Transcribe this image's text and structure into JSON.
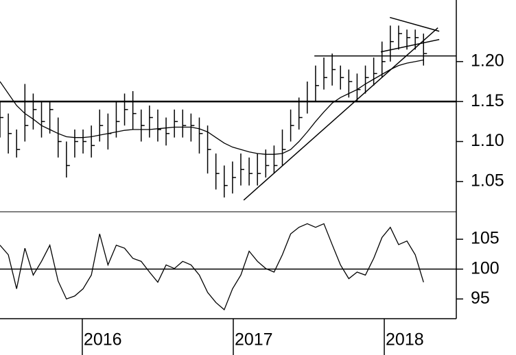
{
  "chart_data": [
    {
      "type": "ohlc",
      "xlim": [
        2015.455,
        2018.477
      ],
      "ylim": [
        1.013,
        1.277
      ],
      "yticks": [
        1.05,
        {
          "value": 1.1,
          "label": "1.10"
        },
        1.15,
        {
          "value": 1.2,
          "label": "1.20"
        }
      ],
      "x": [
        2015.455,
        2015.51,
        2015.565,
        2015.62,
        2015.675,
        2015.73,
        2015.785,
        2015.84,
        2015.895,
        2015.95,
        2016.005,
        2016.06,
        2016.115,
        2016.17,
        2016.225,
        2016.28,
        2016.335,
        2016.39,
        2016.445,
        2016.5,
        2016.555,
        2016.61,
        2016.665,
        2016.72,
        2016.775,
        2016.83,
        2016.885,
        2016.94,
        2016.995,
        2017.05,
        2017.105,
        2017.16,
        2017.215,
        2017.27,
        2017.325,
        2017.38,
        2017.435,
        2017.49,
        2017.545,
        2017.6,
        2017.655,
        2017.71,
        2017.765,
        2017.82,
        2017.875,
        2017.93,
        2017.985,
        2018.04,
        2018.095,
        2018.15,
        2018.205,
        2018.26
      ],
      "high": [
        1.15,
        1.135,
        1.115,
        1.172,
        1.16,
        1.15,
        1.15,
        1.13,
        1.1,
        1.115,
        1.115,
        1.12,
        1.14,
        1.135,
        1.15,
        1.16,
        1.163,
        1.14,
        1.145,
        1.14,
        1.13,
        1.14,
        1.14,
        1.135,
        1.13,
        1.12,
        1.085,
        1.07,
        1.075,
        1.085,
        1.08,
        1.085,
        1.09,
        1.095,
        1.115,
        1.14,
        1.155,
        1.175,
        1.195,
        1.205,
        1.21,
        1.195,
        1.19,
        1.185,
        1.195,
        1.205,
        1.225,
        1.245,
        1.245,
        1.24,
        1.24,
        1.235
      ],
      "low": [
        1.105,
        1.085,
        1.08,
        1.1,
        1.115,
        1.105,
        1.11,
        1.08,
        1.055,
        1.08,
        1.085,
        1.08,
        1.1,
        1.09,
        1.105,
        1.12,
        1.115,
        1.1,
        1.105,
        1.1,
        1.095,
        1.105,
        1.105,
        1.1,
        1.085,
        1.06,
        1.04,
        1.03,
        1.035,
        1.045,
        1.045,
        1.045,
        1.055,
        1.06,
        1.07,
        1.1,
        1.115,
        1.135,
        1.15,
        1.165,
        1.17,
        1.165,
        1.155,
        1.15,
        1.16,
        1.17,
        1.18,
        1.2,
        1.215,
        1.215,
        1.215,
        1.195
      ],
      "close": [
        1.13,
        1.11,
        1.09,
        1.12,
        1.14,
        1.125,
        1.14,
        1.1,
        1.07,
        1.1,
        1.1,
        1.095,
        1.12,
        1.11,
        1.125,
        1.14,
        1.135,
        1.12,
        1.13,
        1.115,
        1.11,
        1.125,
        1.12,
        1.12,
        1.11,
        1.09,
        1.06,
        1.045,
        1.055,
        1.065,
        1.06,
        1.06,
        1.07,
        1.07,
        1.09,
        1.12,
        1.13,
        1.15,
        1.17,
        1.18,
        1.19,
        1.18,
        1.175,
        1.165,
        1.18,
        1.185,
        1.2,
        1.225,
        1.235,
        1.23,
        1.23,
        1.21
      ],
      "moving_average": [
        1.175,
        1.16,
        1.145,
        1.135,
        1.128,
        1.12,
        1.115,
        1.11,
        1.106,
        1.105,
        1.105,
        1.106,
        1.108,
        1.11,
        1.112,
        1.114,
        1.115,
        1.115,
        1.115,
        1.116,
        1.117,
        1.118,
        1.118,
        1.118,
        1.116,
        1.112,
        1.105,
        1.098,
        1.093,
        1.09,
        1.087,
        1.085,
        1.084,
        1.084,
        1.085,
        1.09,
        1.1,
        1.112,
        1.125,
        1.137,
        1.148,
        1.155,
        1.16,
        1.165,
        1.172,
        1.178,
        1.184,
        1.19,
        1.195,
        1.198,
        1.2,
        1.202
      ],
      "color": "#000000",
      "lines": [
        [
          [
            2015.455,
            1.15
          ],
          [
            2018.477,
            1.15
          ]
        ],
        [
          [
            2017.537,
            1.207
          ],
          [
            2018.477,
            1.207
          ]
        ],
        [
          [
            2017.069,
            1.0267
          ],
          [
            2018.355,
            1.2422
          ]
        ],
        [
          [
            2018.037,
            1.2552
          ],
          [
            2018.364,
            1.2379
          ]
        ],
        [
          [
            2017.977,
            1.2121
          ],
          [
            2018.364,
            1.2276
          ]
        ]
      ]
    },
    {
      "type": "line",
      "xlim": [
        2015.455,
        2018.477
      ],
      "ylim": [
        91.7,
        109.6
      ],
      "yticks": [
        95,
        100,
        105
      ],
      "xticks": [
        2016,
        2017,
        2018
      ],
      "reference": 100,
      "color": "#000000",
      "x": [
        2015.455,
        2015.51,
        2015.565,
        2015.62,
        2015.675,
        2015.73,
        2015.785,
        2015.84,
        2015.895,
        2015.95,
        2016.005,
        2016.06,
        2016.115,
        2016.17,
        2016.225,
        2016.28,
        2016.335,
        2016.39,
        2016.445,
        2016.5,
        2016.555,
        2016.61,
        2016.665,
        2016.72,
        2016.775,
        2016.83,
        2016.885,
        2016.94,
        2016.995,
        2017.05,
        2017.105,
        2017.16,
        2017.215,
        2017.27,
        2017.325,
        2017.38,
        2017.435,
        2017.49,
        2017.545,
        2017.6,
        2017.655,
        2017.71,
        2017.765,
        2017.82,
        2017.875,
        2017.93,
        2017.985,
        2018.04,
        2018.095,
        2018.15,
        2018.205,
        2018.26
      ],
      "values": [
        104.0,
        102.4,
        96.7,
        103.5,
        99.0,
        101.3,
        104.0,
        98.0,
        95.0,
        95.5,
        96.7,
        99.0,
        105.9,
        100.7,
        104.0,
        103.5,
        101.8,
        101.3,
        99.5,
        97.8,
        100.7,
        100.1,
        101.3,
        100.7,
        99.0,
        96.1,
        94.4,
        93.2,
        96.7,
        99.0,
        103.0,
        101.3,
        100.1,
        99.5,
        102.4,
        105.9,
        107.0,
        107.6,
        107.0,
        107.6,
        104.1,
        100.7,
        98.4,
        99.5,
        99.0,
        101.8,
        105.3,
        107.0,
        104.1,
        104.7,
        102.4,
        97.8
      ]
    }
  ]
}
